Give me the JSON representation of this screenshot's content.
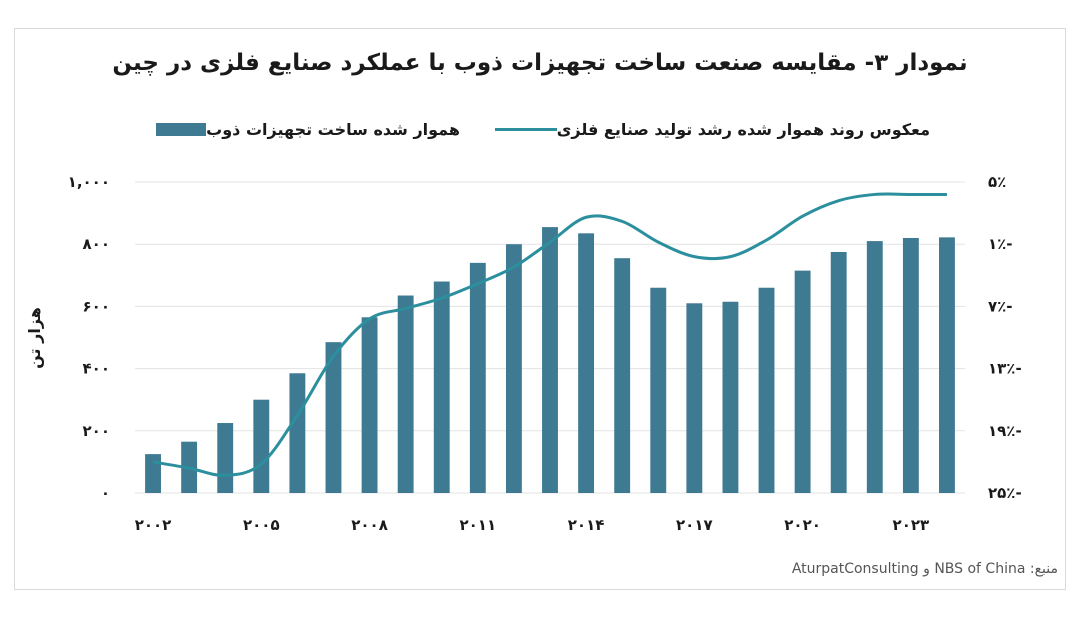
{
  "chart_data": {
    "type": "bar",
    "title": "نمودار ۳- مقایسه صنعت ساخت تجهیزات ذوب با عملکرد صنایع فلزی در چین",
    "ylabel_left": "هزار تن",
    "ylabel_right": "",
    "legend_position": "top",
    "grid": true,
    "categories": [
      "2002",
      "2003",
      "2004",
      "2005",
      "2006",
      "2007",
      "2008",
      "2009",
      "2010",
      "2011",
      "2012",
      "2013",
      "2014",
      "2015",
      "2016",
      "2017",
      "2018",
      "2019",
      "2020",
      "2021",
      "2022",
      "2023",
      "2024"
    ],
    "x_tick_labels": [
      "۲۰۰۲",
      "۲۰۰۵",
      "۲۰۰۸",
      "۲۰۱۱",
      "۲۰۱۴",
      "۲۰۱۷",
      "۲۰۲۰",
      "۲۰۲۳"
    ],
    "x_tick_years": [
      "2002",
      "2005",
      "2008",
      "2011",
      "2014",
      "2017",
      "2020",
      "2023"
    ],
    "y_left": {
      "range": [
        0,
        1000
      ],
      "ticks": [
        0,
        200,
        400,
        600,
        800,
        1000
      ],
      "tick_labels": [
        "۰",
        "۲۰۰",
        "۴۰۰",
        "۶۰۰",
        "۸۰۰",
        "۱,۰۰۰"
      ]
    },
    "y_right": {
      "range": [
        -25,
        5
      ],
      "inverted_labels": true,
      "ticks": [
        5,
        -1,
        -7,
        -13,
        -19,
        -25
      ],
      "tick_labels": [
        "۵٪",
        "۱٪-",
        "۷٪-",
        "۱۳٪-",
        "۱۹٪-",
        "۲۵٪-"
      ]
    },
    "series": [
      {
        "name": "هموار شده ساخت تجهیزات ذوب",
        "kind": "bar",
        "axis": "left",
        "color": "#3f7a93",
        "values": [
          125,
          165,
          225,
          300,
          385,
          485,
          565,
          635,
          680,
          740,
          800,
          855,
          835,
          755,
          660,
          610,
          615,
          660,
          715,
          775,
          810,
          820,
          822
        ]
      },
      {
        "name": "معکوس روند هموار شده رشد تولید صنایع فلزی",
        "kind": "line",
        "axis": "right",
        "color": "#2b8f9e",
        "values": [
          -22.0,
          -22.6,
          -23.3,
          -22.2,
          -17.5,
          -11.8,
          -8.2,
          -7.2,
          -6.2,
          -4.8,
          -3.2,
          -0.8,
          1.6,
          1.2,
          -0.8,
          -2.2,
          -2.2,
          -0.6,
          1.7,
          3.2,
          3.8,
          3.8,
          3.8
        ]
      }
    ]
  },
  "source_text": "منبع: NBS of China و AturpatConsulting"
}
